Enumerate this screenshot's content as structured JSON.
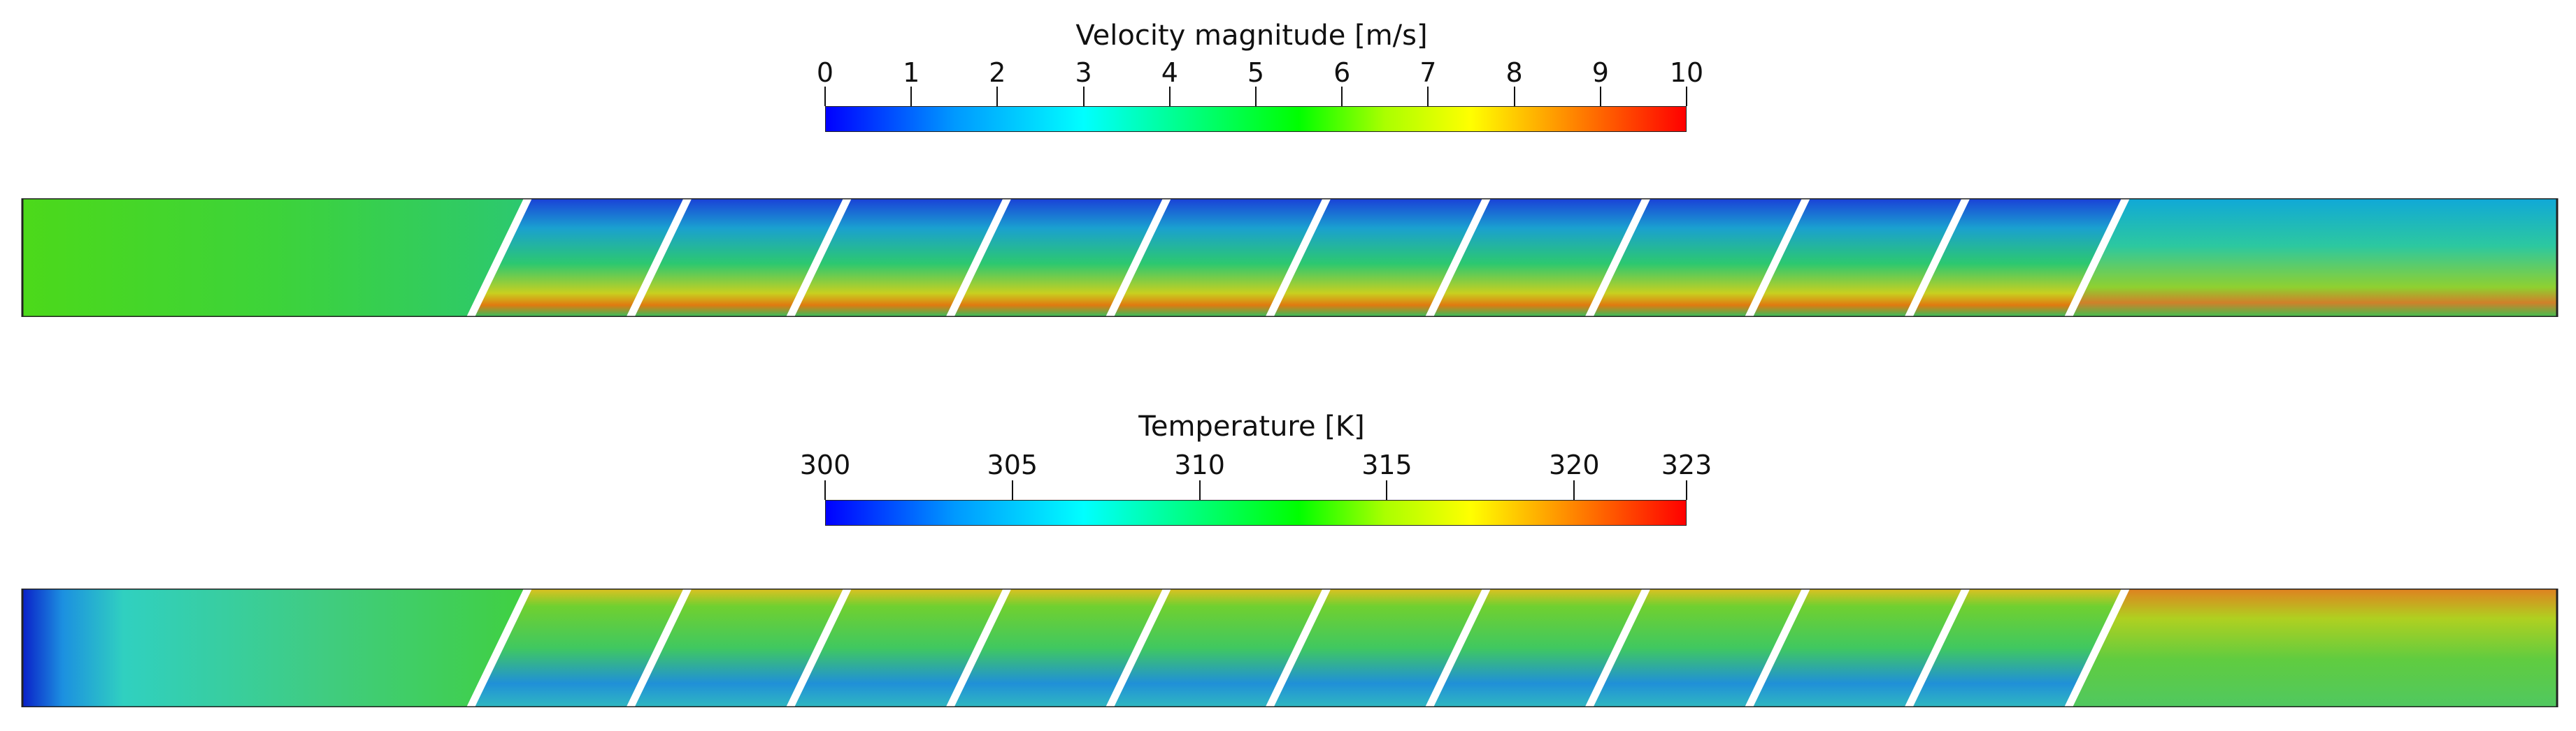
{
  "velocity_colorbar": {
    "title": "Velocity magnitude [m/s]",
    "ticks": [
      "0",
      "1",
      "2",
      "3",
      "4",
      "5",
      "6",
      "7",
      "8",
      "9",
      "10"
    ],
    "range": [
      0,
      10
    ]
  },
  "temperature_colorbar": {
    "title": "Temperature [K]",
    "ticks": [
      "300",
      "305",
      "310",
      "315",
      "320",
      "323"
    ],
    "tick_values": [
      300,
      305,
      310,
      315,
      320,
      323
    ],
    "range": [
      300,
      323
    ]
  },
  "colormap": {
    "low": "#0000ff",
    "mid_low": "#00ffff",
    "mid": "#00ff00",
    "mid_high": "#ffff00",
    "high": "#ff0000"
  },
  "baffle_count": 11
}
